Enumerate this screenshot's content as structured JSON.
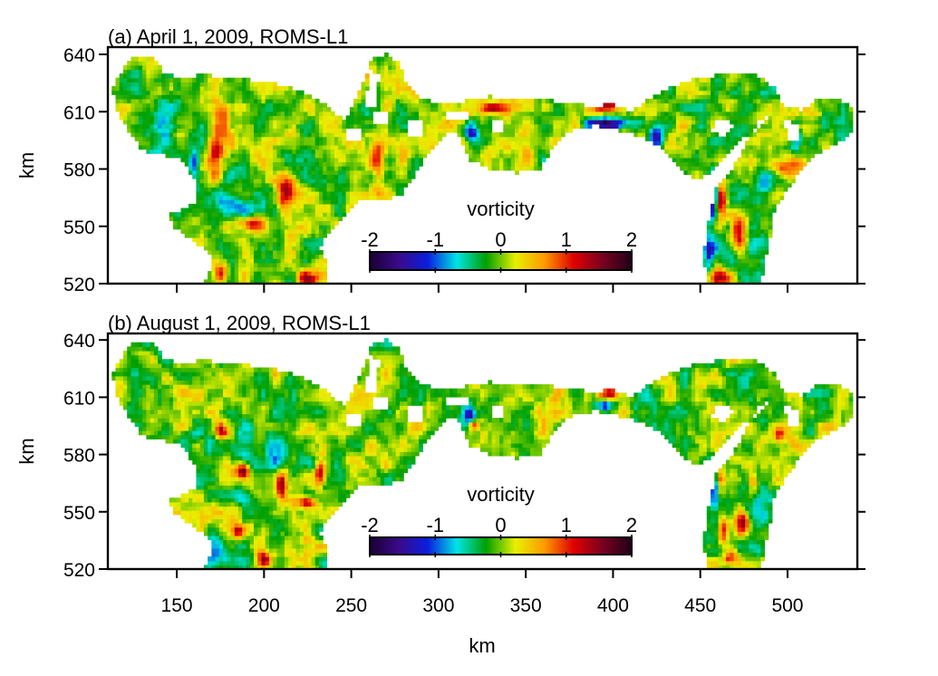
{
  "chart_data": [
    {
      "type": "heatmap",
      "title": "(a) April 1, 2009, ROMS-L1",
      "xlabel": "",
      "ylabel": "km",
      "xlim": [
        110.5,
        540
      ],
      "ylim": [
        520,
        643.8
      ],
      "x_ticks": [
        150,
        200,
        250,
        300,
        350,
        400,
        450,
        500
      ],
      "x_tick_labels": [],
      "y_ticks": [
        520,
        550,
        580,
        610,
        640
      ],
      "y_tick_labels": [
        "520",
        "550",
        "580",
        "610",
        "640"
      ],
      "colorbar": {
        "label": "vorticity",
        "range": [
          -2,
          2
        ],
        "ticks": [
          -2,
          -1,
          0,
          1,
          2
        ],
        "tick_labels": [
          "-2",
          "-1",
          "0",
          "1",
          "2"
        ],
        "colors": [
          "#1a0033",
          "#3a0a8a",
          "#0a1ee0",
          "#00e5e5",
          "#00a000",
          "#e8f000",
          "#ff9a00",
          "#e00000",
          "#7a0020",
          "#200018"
        ]
      },
      "features": [
        {
          "x": 172,
          "y": 590,
          "value": 1.3,
          "sx": 3,
          "sy": 9
        },
        {
          "x": 175,
          "y": 605,
          "value": 1.0,
          "sx": 3,
          "sy": 6
        },
        {
          "x": 212,
          "y": 568,
          "value": 1.4,
          "sx": 4,
          "sy": 7
        },
        {
          "x": 192,
          "y": 552,
          "value": 1.2,
          "sx": 6,
          "sy": 3
        },
        {
          "x": 175,
          "y": 525,
          "value": 1.2,
          "sx": 3,
          "sy": 4
        },
        {
          "x": 225,
          "y": 523,
          "value": 1.1,
          "sx": 5,
          "sy": 3
        },
        {
          "x": 180,
          "y": 560,
          "value": -0.8,
          "sx": 10,
          "sy": 4
        },
        {
          "x": 160,
          "y": 583,
          "value": -1.1,
          "sx": 2,
          "sy": 5
        },
        {
          "x": 140,
          "y": 595,
          "value": -0.5,
          "sx": 10,
          "sy": 25
        },
        {
          "x": 265,
          "y": 585,
          "value": 0.9,
          "sx": 3,
          "sy": 10
        },
        {
          "x": 318,
          "y": 600,
          "value": -1.5,
          "sx": 3,
          "sy": 4
        },
        {
          "x": 330,
          "y": 612,
          "value": 1.2,
          "sx": 6,
          "sy": 2
        },
        {
          "x": 397,
          "y": 604,
          "value": -1.6,
          "sx": 8,
          "sy": 2
        },
        {
          "x": 397,
          "y": 613,
          "value": 1.5,
          "sx": 6,
          "sy": 2
        },
        {
          "x": 425,
          "y": 597,
          "value": -1.3,
          "sx": 3,
          "sy": 4
        },
        {
          "x": 472,
          "y": 546,
          "value": 2.0,
          "sx": 4,
          "sy": 7
        },
        {
          "x": 470,
          "y": 546,
          "value": -0.6,
          "sx": 12,
          "sy": 14
        },
        {
          "x": 462,
          "y": 565,
          "value": 1.4,
          "sx": 2,
          "sy": 8
        },
        {
          "x": 457,
          "y": 565,
          "value": -1.6,
          "sx": 2,
          "sy": 9
        },
        {
          "x": 455,
          "y": 535,
          "value": -1.0,
          "sx": 2,
          "sy": 6
        },
        {
          "x": 462,
          "y": 524,
          "value": 1.2,
          "sx": 4,
          "sy": 3
        },
        {
          "x": 500,
          "y": 582,
          "value": 1.0,
          "sx": 10,
          "sy": 3
        },
        {
          "x": 490,
          "y": 575,
          "value": -0.6,
          "sx": 8,
          "sy": 4
        },
        {
          "x": 505,
          "y": 598,
          "value": -1.0,
          "sx": 2,
          "sy": 6
        }
      ]
    },
    {
      "type": "heatmap",
      "title": "(b) August 1, 2009, ROMS-L1",
      "xlabel": "km",
      "ylabel": "km",
      "xlim": [
        110.5,
        540
      ],
      "ylim": [
        520,
        643.4
      ],
      "x_ticks": [
        150,
        200,
        250,
        300,
        350,
        400,
        450,
        500
      ],
      "x_tick_labels": [
        "150",
        "200",
        "250",
        "300",
        "350",
        "400",
        "450",
        "500"
      ],
      "y_ticks": [
        520,
        550,
        580,
        610,
        640
      ],
      "y_tick_labels": [
        "520",
        "550",
        "580",
        "610",
        "640"
      ],
      "colorbar": {
        "label": "vorticity",
        "range": [
          -2,
          2
        ],
        "ticks": [
          -2,
          -1,
          0,
          1,
          2
        ],
        "tick_labels": [
          "-2",
          "-1",
          "0",
          "1",
          "2"
        ],
        "colors": [
          "#1a0033",
          "#3a0a8a",
          "#0a1ee0",
          "#00e5e5",
          "#00a000",
          "#e8f000",
          "#ff9a00",
          "#e00000",
          "#7a0020",
          "#200018"
        ]
      },
      "features": [
        {
          "x": 188,
          "y": 572,
          "value": 2.0,
          "sx": 3,
          "sy": 3
        },
        {
          "x": 175,
          "y": 592,
          "value": 1.4,
          "sx": 2.5,
          "sy": 3
        },
        {
          "x": 210,
          "y": 565,
          "value": 1.5,
          "sx": 2.5,
          "sy": 6
        },
        {
          "x": 225,
          "y": 555,
          "value": 1.3,
          "sx": 4,
          "sy": 2
        },
        {
          "x": 232,
          "y": 570,
          "value": 1.2,
          "sx": 2,
          "sy": 5
        },
        {
          "x": 200,
          "y": 580,
          "value": -0.6,
          "sx": 14,
          "sy": 12
        },
        {
          "x": 185,
          "y": 540,
          "value": 1.3,
          "sx": 2.5,
          "sy": 2.5
        },
        {
          "x": 200,
          "y": 525,
          "value": 1.2,
          "sx": 3,
          "sy": 3
        },
        {
          "x": 175,
          "y": 530,
          "value": -0.6,
          "sx": 10,
          "sy": 6
        },
        {
          "x": 160,
          "y": 580,
          "value": -0.4,
          "sx": 10,
          "sy": 10
        },
        {
          "x": 318,
          "y": 600,
          "value": -1.2,
          "sx": 3,
          "sy": 3
        },
        {
          "x": 320,
          "y": 596,
          "value": 1.2,
          "sx": 2,
          "sy": 2
        },
        {
          "x": 398,
          "y": 612,
          "value": 1.0,
          "sx": 4,
          "sy": 2
        },
        {
          "x": 395,
          "y": 606,
          "value": -1.1,
          "sx": 5,
          "sy": 2
        },
        {
          "x": 474,
          "y": 545,
          "value": 2.0,
          "sx": 3,
          "sy": 5
        },
        {
          "x": 463,
          "y": 540,
          "value": 1.3,
          "sx": 2,
          "sy": 5
        },
        {
          "x": 468,
          "y": 527,
          "value": 1.3,
          "sx": 3,
          "sy": 3
        },
        {
          "x": 470,
          "y": 548,
          "value": -0.6,
          "sx": 12,
          "sy": 14
        },
        {
          "x": 458,
          "y": 565,
          "value": -1.3,
          "sx": 2,
          "sy": 7
        },
        {
          "x": 461,
          "y": 568,
          "value": 1.1,
          "sx": 2,
          "sy": 5
        },
        {
          "x": 495,
          "y": 590,
          "value": 1.0,
          "sx": 2,
          "sy": 3
        },
        {
          "x": 480,
          "y": 566,
          "value": 1.1,
          "sx": 2,
          "sy": 3
        }
      ]
    }
  ],
  "domain_outline_km": [
    [
      113,
      622
    ],
    [
      121,
      636
    ],
    [
      128,
      640
    ],
    [
      137,
      638
    ],
    [
      143,
      630
    ],
    [
      155,
      627
    ],
    [
      165,
      630
    ],
    [
      175,
      628
    ],
    [
      190,
      627
    ],
    [
      205,
      625
    ],
    [
      218,
      622
    ],
    [
      228,
      618
    ],
    [
      238,
      612
    ],
    [
      246,
      605
    ],
    [
      250,
      612
    ],
    [
      257,
      625
    ],
    [
      262,
      638
    ],
    [
      270,
      640
    ],
    [
      277,
      636
    ],
    [
      282,
      624
    ],
    [
      288,
      618
    ],
    [
      298,
      615
    ],
    [
      310,
      614
    ],
    [
      320,
      617
    ],
    [
      330,
      618
    ],
    [
      345,
      616
    ],
    [
      360,
      617
    ],
    [
      375,
      614
    ],
    [
      390,
      613
    ],
    [
      400,
      614
    ],
    [
      410,
      610
    ],
    [
      420,
      616
    ],
    [
      432,
      622
    ],
    [
      445,
      627
    ],
    [
      458,
      629
    ],
    [
      470,
      630
    ],
    [
      482,
      629
    ],
    [
      492,
      623
    ],
    [
      498,
      613
    ],
    [
      508,
      611
    ],
    [
      518,
      617
    ],
    [
      530,
      617
    ],
    [
      538,
      611
    ],
    [
      538,
      600
    ],
    [
      530,
      594
    ],
    [
      520,
      590
    ],
    [
      510,
      582
    ],
    [
      500,
      570
    ],
    [
      492,
      558
    ],
    [
      490,
      545
    ],
    [
      487,
      532
    ],
    [
      485,
      520
    ],
    [
      455,
      520
    ],
    [
      452,
      530
    ],
    [
      453,
      545
    ],
    [
      456,
      558
    ],
    [
      458,
      566
    ],
    [
      460,
      572
    ],
    [
      466,
      578
    ],
    [
      474,
      588
    ],
    [
      478,
      598
    ],
    [
      484,
      606
    ],
    [
      490,
      608
    ],
    [
      484,
      602
    ],
    [
      470,
      593
    ],
    [
      462,
      585
    ],
    [
      455,
      577
    ],
    [
      448,
      575
    ],
    [
      440,
      578
    ],
    [
      430,
      590
    ],
    [
      418,
      596
    ],
    [
      405,
      600
    ],
    [
      390,
      603
    ],
    [
      375,
      600
    ],
    [
      365,
      590
    ],
    [
      358,
      580
    ],
    [
      345,
      578
    ],
    [
      330,
      580
    ],
    [
      318,
      585
    ],
    [
      312,
      598
    ],
    [
      305,
      600
    ],
    [
      295,
      590
    ],
    [
      285,
      575
    ],
    [
      278,
      566
    ],
    [
      265,
      563
    ],
    [
      255,
      564
    ],
    [
      245,
      555
    ],
    [
      238,
      548
    ],
    [
      232,
      540
    ],
    [
      236,
      530
    ],
    [
      235,
      520
    ],
    [
      166,
      520
    ],
    [
      170,
      530
    ],
    [
      168,
      538
    ],
    [
      158,
      543
    ],
    [
      148,
      550
    ],
    [
      145,
      556
    ],
    [
      152,
      558
    ],
    [
      160,
      562
    ],
    [
      162,
      570
    ],
    [
      158,
      578
    ],
    [
      152,
      585
    ],
    [
      140,
      588
    ],
    [
      130,
      590
    ],
    [
      122,
      600
    ],
    [
      116,
      610
    ]
  ],
  "holes_km": [
    [
      [
        258,
        612
      ],
      [
        264,
        612
      ],
      [
        266,
        630
      ],
      [
        260,
        632
      ]
    ],
    [
      [
        246,
        594
      ],
      [
        256,
        594
      ],
      [
        256,
        602
      ],
      [
        246,
        602
      ]
    ],
    [
      [
        283,
        596
      ],
      [
        290,
        596
      ],
      [
        290,
        605
      ],
      [
        283,
        605
      ]
    ],
    [
      [
        262,
        604
      ],
      [
        270,
        604
      ],
      [
        270,
        610
      ],
      [
        262,
        610
      ]
    ],
    [
      [
        305,
        606
      ],
      [
        318,
        606
      ],
      [
        318,
        611
      ],
      [
        305,
        611
      ]
    ],
    [
      [
        330,
        600
      ],
      [
        336,
        600
      ],
      [
        336,
        606
      ],
      [
        330,
        606
      ]
    ],
    [
      [
        500,
        596
      ],
      [
        508,
        594
      ],
      [
        505,
        604
      ],
      [
        498,
        606
      ]
    ],
    [
      [
        455,
        600
      ],
      [
        465,
        597
      ],
      [
        470,
        604
      ],
      [
        460,
        606
      ]
    ]
  ]
}
